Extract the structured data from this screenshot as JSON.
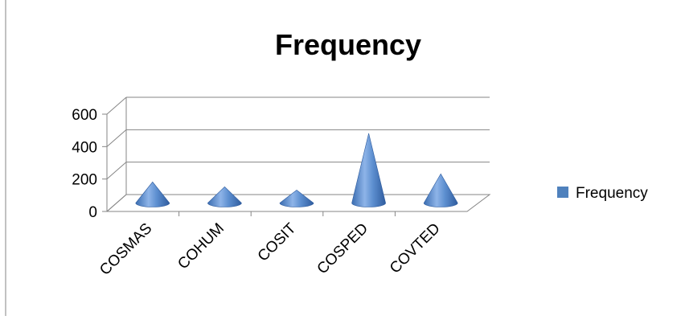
{
  "chart_data": {
    "type": "bar",
    "bar_shape": "cone",
    "view": "3d",
    "title": "Frequency",
    "xlabel": "",
    "ylabel": "",
    "categories": [
      "COSMAS",
      "COHUM",
      "COSIT",
      "COSPED",
      "COVTED"
    ],
    "series": [
      {
        "name": "Frequency",
        "values": [
          130,
          100,
          80,
          430,
          180
        ],
        "color": "#4F81BD"
      }
    ],
    "ylim": [
      0,
      600
    ],
    "yticks": [
      0,
      200,
      400,
      600
    ],
    "ytick_labels": [
      "0",
      "200",
      "400",
      "600"
    ],
    "grid": true,
    "legend": "right"
  }
}
